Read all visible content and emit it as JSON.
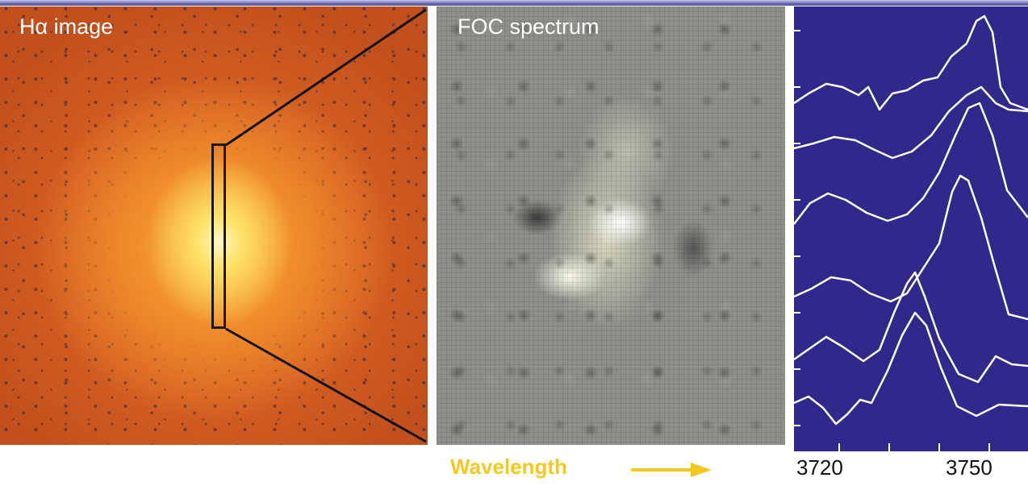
{
  "figure": {
    "panels": [
      {
        "label": "Hα image"
      },
      {
        "label": "FOC spectrum"
      }
    ],
    "axis": {
      "direction_label": "Wavelength",
      "tick_labels": [
        "3720",
        "3750"
      ]
    },
    "colors": {
      "plot_background": "#30288a",
      "trace": "#ffffff",
      "wavelength_label": "#f2c91c"
    },
    "icons": {
      "arrow": "arrow-right-icon"
    }
  }
}
